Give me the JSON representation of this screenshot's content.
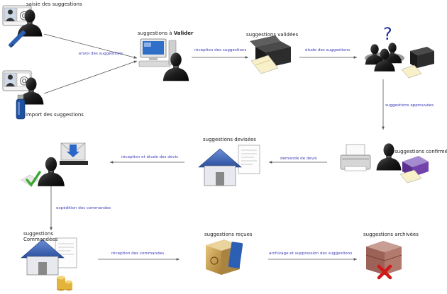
{
  "colors": {
    "arrow": "#555555",
    "edge_text": "#3b3bb8",
    "node_text": "#222222",
    "person": "#1a1a1a",
    "house_roof": "#3d63b3",
    "box": "#c9a25a",
    "red_x": "#d01818",
    "check": "#3aa832"
  },
  "nodes": {
    "saisie": {
      "label": "saisie des suggestions",
      "icons": [
        "contact-card-icon",
        "person-icon",
        "pen-icon"
      ]
    },
    "import": {
      "label": "import des suggestions",
      "icons": [
        "contact-card-icon",
        "person-icon",
        "usb-key-icon"
      ]
    },
    "valider": {
      "label_prefix": "suggestions à ",
      "label_bold": "Valider",
      "icons": [
        "computer-icon",
        "person-icon"
      ]
    },
    "validees": {
      "label": "suggestions validées",
      "icons": [
        "open-box-icon",
        "paper-icon"
      ]
    },
    "etude": {
      "label": "",
      "icons": [
        "meeting-people-icon",
        "question-mark-icon"
      ]
    },
    "confirmees": {
      "label": "suggestions confirmées",
      "icons": [
        "printer-icon",
        "person-icon",
        "purple-box-icon"
      ]
    },
    "devisees": {
      "label": "suggestions devisées",
      "icons": [
        "house-icon",
        "document-icon"
      ]
    },
    "commandes_src": {
      "label": "",
      "icons": [
        "person-icon",
        "mail-inbox-icon",
        "checkmark-icon"
      ]
    },
    "commandees": {
      "label_line1": "suggestions",
      "label_line2": "Commandées",
      "icons": [
        "house-icon",
        "document-icon",
        "coins-icon"
      ]
    },
    "recues": {
      "label": "suggestions reçues",
      "icons": [
        "package-icon"
      ]
    },
    "archivees": {
      "label": "suggestions archivées",
      "icons": [
        "crate-icon",
        "red-x-icon"
      ]
    }
  },
  "edges": {
    "envoi": "envoi des suggestions",
    "reception": "réception des suggestions",
    "etude": "étude des suggestions",
    "approuvees": "suggestions approuvées",
    "demande_devis": "demande de devis",
    "reception_devis": "réception et étude des devis",
    "expedition": "expédition des commandes",
    "reception_commandes": "réception des commandes",
    "archivage": "archivage et suppression des suggestions"
  }
}
